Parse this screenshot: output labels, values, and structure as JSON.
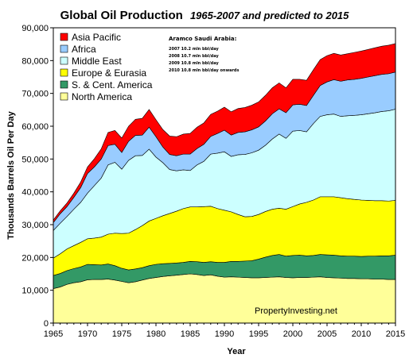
{
  "chart_data": {
    "type": "area",
    "stacked": true,
    "title": "Global Oil Production",
    "title_suffix": "1965-2007 and predicted to 2015",
    "xlabel": "Year",
    "ylabel": "Thousands Barrels Oil Per Day",
    "xlim": [
      1965,
      2015
    ],
    "ylim": [
      0,
      90000
    ],
    "x_ticks": [
      "1965",
      "1970",
      "1975",
      "1980",
      "1985",
      "1990",
      "1995",
      "2000",
      "2005",
      "2010",
      "2015"
    ],
    "y_ticks": [
      "0",
      "10,000",
      "20,000",
      "30,000",
      "40,000",
      "50,000",
      "60,000",
      "70,000",
      "80,000",
      "90,000"
    ],
    "grid": false,
    "legend_position": "top-left",
    "x": [
      1965,
      1966,
      1967,
      1968,
      1969,
      1970,
      1971,
      1972,
      1973,
      1974,
      1975,
      1976,
      1977,
      1978,
      1979,
      1980,
      1981,
      1982,
      1983,
      1984,
      1985,
      1986,
      1987,
      1988,
      1989,
      1990,
      1991,
      1992,
      1993,
      1994,
      1995,
      1996,
      1997,
      1998,
      1999,
      2000,
      2001,
      2002,
      2003,
      2004,
      2005,
      2006,
      2007,
      2008,
      2009,
      2010,
      2011,
      2012,
      2013,
      2014,
      2015
    ],
    "series": [
      {
        "name": "North America",
        "color": "#ffff99",
        "values": [
          10500,
          11000,
          11800,
          12300,
          12600,
          13200,
          13300,
          13300,
          13400,
          13100,
          12700,
          12300,
          12600,
          13100,
          13600,
          13900,
          14200,
          14400,
          14600,
          14800,
          15000,
          14800,
          14500,
          14700,
          14300,
          14000,
          14100,
          14000,
          13900,
          13800,
          13800,
          13900,
          14000,
          14100,
          13900,
          13800,
          13900,
          13900,
          14000,
          14100,
          13900,
          13800,
          13700,
          13600,
          13600,
          13500,
          13500,
          13400,
          13400,
          13300,
          13300
        ]
      },
      {
        "name": "S. & Cent. America",
        "color": "#339966",
        "values": [
          4000,
          4100,
          4200,
          4300,
          4500,
          4700,
          4500,
          4400,
          4600,
          4400,
          4000,
          3900,
          3900,
          3800,
          3900,
          4000,
          3900,
          3800,
          3700,
          3700,
          3800,
          3900,
          4000,
          4000,
          4200,
          4500,
          4700,
          4800,
          5000,
          5200,
          5700,
          6200,
          6600,
          6800,
          6500,
          6800,
          6800,
          6600,
          6600,
          6800,
          6900,
          6900,
          6800,
          6800,
          6800,
          6800,
          6900,
          7000,
          7100,
          7200,
          7400
        ]
      },
      {
        "name": "Europe & Eurasia",
        "color": "#ffff00",
        "values": [
          5300,
          6000,
          6600,
          7000,
          7500,
          7800,
          8100,
          8500,
          9100,
          9900,
          10600,
          11200,
          12000,
          12800,
          13600,
          14000,
          14600,
          15200,
          15800,
          16400,
          16600,
          16700,
          17000,
          16900,
          16400,
          15900,
          15100,
          14300,
          13500,
          13500,
          13600,
          13900,
          14100,
          14100,
          14300,
          14900,
          15600,
          16300,
          16900,
          17600,
          17700,
          17800,
          17700,
          17500,
          17300,
          17200,
          17000,
          16900,
          16800,
          16700,
          16700
        ]
      },
      {
        "name": "Middle East",
        "color": "#ccffff",
        "values": [
          8400,
          9300,
          9900,
          11100,
          12200,
          13900,
          16000,
          18000,
          21100,
          21600,
          19600,
          22200,
          22500,
          21400,
          21900,
          18700,
          16200,
          13400,
          12300,
          11800,
          11100,
          12800,
          13800,
          15900,
          16900,
          17800,
          16900,
          18200,
          19000,
          19400,
          19600,
          20200,
          21400,
          22600,
          21600,
          23000,
          22400,
          21500,
          23300,
          24500,
          25000,
          25200,
          24800,
          25300,
          25600,
          26000,
          26400,
          26800,
          27200,
          27500,
          27800
        ]
      },
      {
        "name": "Africa",
        "color": "#99ccff",
        "values": [
          2400,
          2900,
          3000,
          3600,
          4500,
          6000,
          5700,
          5800,
          5900,
          5500,
          5100,
          5800,
          6200,
          6200,
          6700,
          6200,
          4800,
          4600,
          4600,
          4800,
          5000,
          5000,
          5200,
          5400,
          6000,
          6600,
          6500,
          6800,
          6900,
          7000,
          7100,
          7400,
          7700,
          7700,
          7800,
          8000,
          8000,
          8000,
          8600,
          9400,
          10000,
          10500,
          10700,
          10900,
          11000,
          11100,
          11200,
          11300,
          11300,
          11300,
          11300
        ]
      },
      {
        "name": "Asia Pacific",
        "color": "#ff0000",
        "values": [
          800,
          900,
          1100,
          1300,
          1700,
          2000,
          2500,
          3100,
          4000,
          4200,
          4400,
          4600,
          4900,
          5100,
          5400,
          5200,
          5300,
          5600,
          5800,
          6100,
          6300,
          6500,
          6500,
          6700,
          6800,
          7000,
          7100,
          7300,
          7400,
          7500,
          7600,
          7800,
          7900,
          7900,
          7600,
          7800,
          7600,
          7700,
          7800,
          7900,
          8000,
          8000,
          8000,
          8000,
          8200,
          8300,
          8400,
          8500,
          8600,
          8700,
          8700
        ]
      }
    ]
  },
  "annotation": {
    "title": "Aramco Saudi Arabia:",
    "lines": [
      "2007 10.2 mln bbl/day",
      "2008 10.7 mln bbl/day",
      "2009 10.8 mln bbl/day",
      "2010 10.8 mln bbl/day onwards"
    ]
  },
  "watermark": "PropertyInvesting.net"
}
